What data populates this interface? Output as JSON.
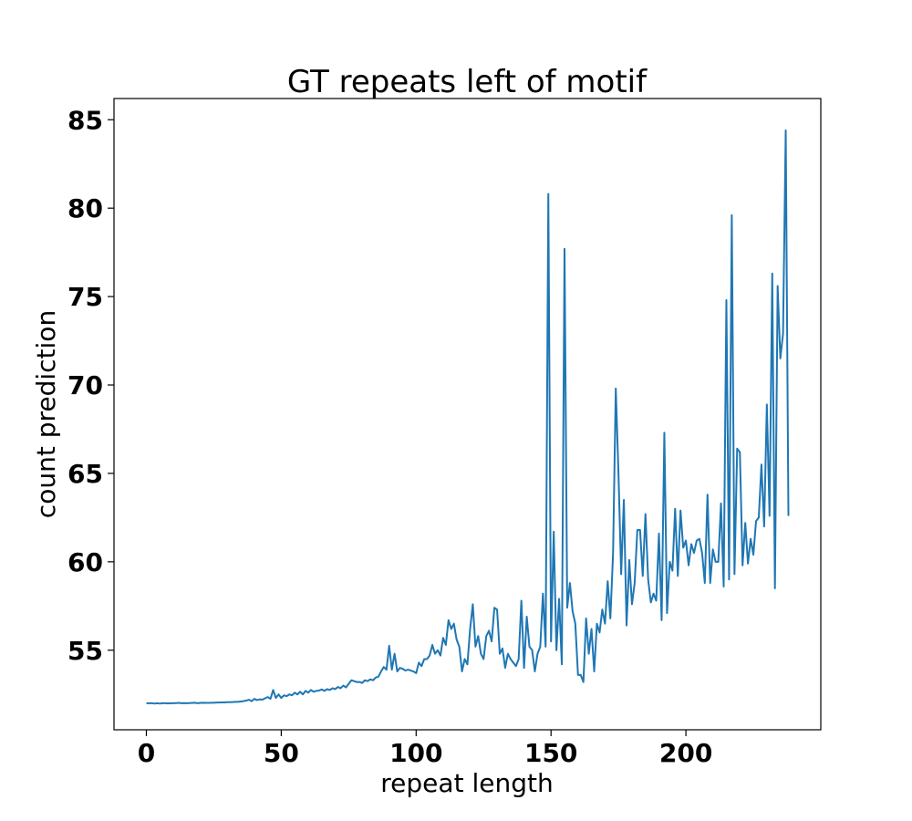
{
  "chart_data": {
    "type": "line",
    "title": "GT repeats left of motif",
    "xlabel": "repeat length",
    "ylabel": "count prediction",
    "xlim": [
      -12,
      250
    ],
    "ylim": [
      50.5,
      86.2
    ],
    "xticks": [
      0,
      50,
      100,
      150,
      200
    ],
    "yticks": [
      55,
      60,
      65,
      70,
      75,
      80,
      85
    ],
    "grid": false,
    "color": "#1f77b4",
    "x_start": 0,
    "x_step": 1,
    "y": [
      52.0,
      52.0,
      52.0,
      51.98,
      52.0,
      51.98,
      52.0,
      52.0,
      51.99,
      52.0,
      52.0,
      52.01,
      52.02,
      52.0,
      52.01,
      52.0,
      52.01,
      52.02,
      52.03,
      52.0,
      52.02,
      52.03,
      52.02,
      52.02,
      52.03,
      52.03,
      52.04,
      52.04,
      52.05,
      52.05,
      52.06,
      52.06,
      52.07,
      52.08,
      52.08,
      52.1,
      52.12,
      52.15,
      52.2,
      52.12,
      52.25,
      52.18,
      52.22,
      52.2,
      52.28,
      52.35,
      52.25,
      52.75,
      52.3,
      52.5,
      52.3,
      52.45,
      52.4,
      52.5,
      52.45,
      52.6,
      52.5,
      52.65,
      52.5,
      52.7,
      52.6,
      52.75,
      52.65,
      52.7,
      52.72,
      52.78,
      52.7,
      52.8,
      52.75,
      52.85,
      52.8,
      52.92,
      52.85,
      53.0,
      52.9,
      53.1,
      53.3,
      53.25,
      53.2,
      53.2,
      53.15,
      53.3,
      53.25,
      53.35,
      53.3,
      53.45,
      53.5,
      53.8,
      54.05,
      53.9,
      55.25,
      53.9,
      54.8,
      53.8,
      54.0,
      53.95,
      53.85,
      53.9,
      53.85,
      53.8,
      53.7,
      54.3,
      54.1,
      54.5,
      54.5,
      54.7,
      55.3,
      54.8,
      55.0,
      54.7,
      55.7,
      55.3,
      56.7,
      56.2,
      56.5,
      55.6,
      55.2,
      53.8,
      54.5,
      54.2,
      56.2,
      57.6,
      55.2,
      55.8,
      54.8,
      54.5,
      55.8,
      56.1,
      55.5,
      57.4,
      57.3,
      54.8,
      55.1,
      54.0,
      54.8,
      54.5,
      54.3,
      54.1,
      54.5,
      57.8,
      54.0,
      56.9,
      55.2,
      55.0,
      53.8,
      54.8,
      55.2,
      58.2,
      55.2,
      80.8,
      55.5,
      61.7,
      55.0,
      57.9,
      54.2,
      77.7,
      57.4,
      58.8,
      57.2,
      56.5,
      53.6,
      53.6,
      53.2,
      56.8,
      54.8,
      56.2,
      53.8,
      56.5,
      56.0,
      57.3,
      56.5,
      58.9,
      56.8,
      60.5,
      69.8,
      65.0,
      59.3,
      63.5,
      56.4,
      60.1,
      57.6,
      58.8,
      61.8,
      61.8,
      59.2,
      62.7,
      59.0,
      57.7,
      58.2,
      57.8,
      61.6,
      56.7,
      67.3,
      57.1,
      60.0,
      59.5,
      63.0,
      59.2,
      62.9,
      60.8,
      61.2,
      59.8,
      61.0,
      60.5,
      61.2,
      61.3,
      60.5,
      58.8,
      63.8,
      58.8,
      60.7,
      60.0,
      60.0,
      63.3,
      58.6,
      74.8,
      59.0,
      79.6,
      59.3,
      66.4,
      66.2,
      59.8,
      62.2,
      59.9,
      61.3,
      60.4,
      62.3,
      62.5,
      65.5,
      62.0,
      68.9,
      62.6,
      76.3,
      58.5,
      75.6,
      71.5,
      72.9,
      84.4,
      62.6
    ]
  }
}
